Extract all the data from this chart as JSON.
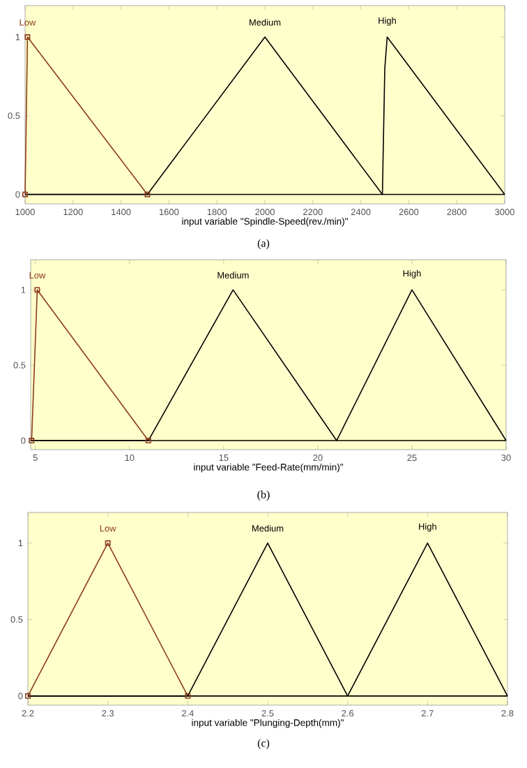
{
  "chart_data": [
    {
      "type": "line",
      "xlabel": "input variable \"Spindle-Speed(rev./min)\"",
      "annotations": [
        "(a)"
      ],
      "xlim": [
        1000,
        3000
      ],
      "ylim": [
        -0.06,
        1.2
      ],
      "xticks": [
        1000,
        1200,
        1400,
        1600,
        1800,
        2000,
        2200,
        2400,
        2600,
        2800,
        3000
      ],
      "yticks": [
        0,
        0.5,
        1
      ],
      "grid": false,
      "legend": false,
      "series": [
        {
          "name": "Low",
          "color": "#8b3a1a",
          "marker": "square",
          "x": [
            1000,
            1010,
            1510
          ],
          "values": [
            0,
            1,
            0
          ]
        },
        {
          "name": "Medium",
          "color": "#000000",
          "x": [
            1000,
            1510,
            2000,
            2490,
            3000
          ],
          "values": [
            0,
            0,
            1,
            0,
            0
          ]
        },
        {
          "name": "High",
          "color": "#000000",
          "x": [
            1000,
            2490,
            2500,
            2510,
            3000
          ],
          "values": [
            0,
            0,
            0.8,
            1,
            0
          ]
        }
      ]
    },
    {
      "type": "line",
      "xlabel": "input variable \"Feed-Rate(mm/min)\"",
      "annotations": [
        "(b)"
      ],
      "xlim": [
        4.75,
        30
      ],
      "ylim": [
        -0.06,
        1.2
      ],
      "xticks": [
        5,
        10,
        15,
        20,
        25,
        30
      ],
      "yticks": [
        0,
        0.5,
        1
      ],
      "grid": false,
      "legend": false,
      "series": [
        {
          "name": "Low",
          "color": "#8b3a1a",
          "marker": "square",
          "x": [
            4.8,
            5.1,
            11
          ],
          "values": [
            0,
            1,
            0
          ]
        },
        {
          "name": "Medium",
          "color": "#000000",
          "x": [
            4.75,
            11,
            15.5,
            21,
            30
          ],
          "values": [
            0,
            0,
            1,
            0,
            0
          ]
        },
        {
          "name": "High",
          "color": "#000000",
          "x": [
            4.75,
            21,
            25,
            30
          ],
          "values": [
            0,
            0,
            1,
            0
          ]
        }
      ]
    },
    {
      "type": "line",
      "xlabel": "input variable \"Plunging-Depth(mm)\"",
      "annotations": [
        "(c)"
      ],
      "xlim": [
        2.2,
        2.8
      ],
      "ylim": [
        -0.06,
        1.2
      ],
      "xticks": [
        2.2,
        2.3,
        2.4,
        2.5,
        2.6,
        2.7,
        2.8
      ],
      "yticks": [
        0,
        0.5,
        1
      ],
      "grid": false,
      "legend": false,
      "series": [
        {
          "name": "Low",
          "color": "#8b3a1a",
          "marker": "square",
          "x": [
            2.2,
            2.3,
            2.4
          ],
          "values": [
            0,
            1,
            0
          ]
        },
        {
          "name": "Medium",
          "color": "#000000",
          "x": [
            2.2,
            2.4,
            2.5,
            2.6,
            2.8
          ],
          "values": [
            0,
            0,
            1,
            0,
            0
          ]
        },
        {
          "name": "High",
          "color": "#000000",
          "x": [
            2.2,
            2.6,
            2.7,
            2.8
          ],
          "values": [
            0,
            0,
            1,
            0
          ]
        }
      ]
    }
  ]
}
